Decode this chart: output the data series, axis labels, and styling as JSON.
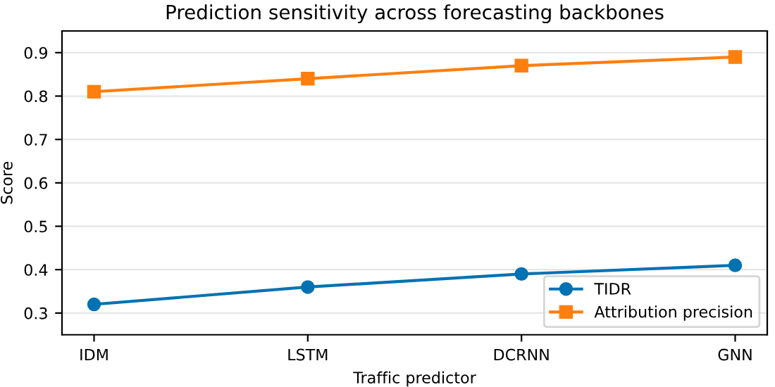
{
  "chart_data": {
    "type": "line",
    "title": "Prediction sensitivity across forecasting backbones",
    "xlabel": "Traffic predictor",
    "ylabel": "Score",
    "categories": [
      "IDM",
      "LSTM",
      "DCRNN",
      "GNN"
    ],
    "series": [
      {
        "name": "TIDR",
        "color": "#0072b2",
        "marker": "circle",
        "values": [
          0.32,
          0.36,
          0.39,
          0.41
        ]
      },
      {
        "name": "Attribution precision",
        "color": "#ff7f0e",
        "marker": "square",
        "values": [
          0.81,
          0.84,
          0.87,
          0.89
        ]
      }
    ],
    "ylim": [
      0.25,
      0.95
    ],
    "yticks": [
      0.3,
      0.4,
      0.5,
      0.6,
      0.7,
      0.8,
      0.9
    ],
    "grid": "y",
    "legend": "bottom right",
    "line_style": "solid"
  }
}
